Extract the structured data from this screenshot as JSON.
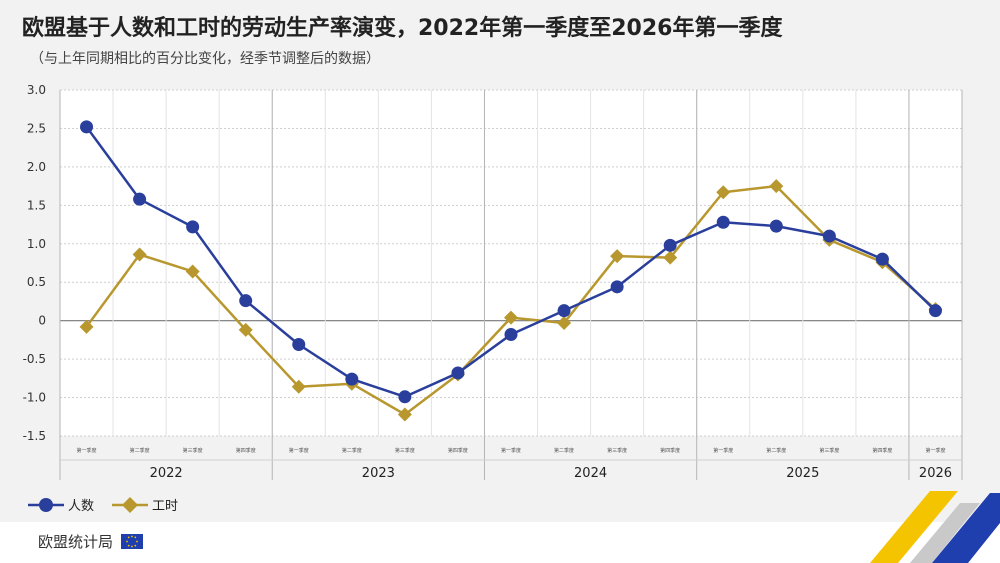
{
  "header": {
    "title": "欧盟基于人数和工时的劳动生产率演变，2022年第一季度至2026年第一季度",
    "subtitle": "（与上年同期相比的百分比变化，经季节调整后的数据）"
  },
  "footer": {
    "source": "欧盟统计局"
  },
  "colors": {
    "persons": "#2a3f9c",
    "hours": "#b8982e",
    "accent_yellow": "#f5c400",
    "accent_blue": "#1f3fae"
  },
  "chart_data": {
    "type": "line",
    "title": "欧盟基于人数和工时的劳动生产率演变，2022年第一季度至2026年第一季度",
    "subtitle": "（与上年同期相比的百分比变化，经季节调整后的数据）",
    "ylim": [
      -1.5,
      3.0
    ],
    "yticks": [
      "3.0",
      "2.5",
      "2.0",
      "1.5",
      "1.0",
      "0.5",
      "0",
      "-0.5",
      "-1.0",
      "-1.5"
    ],
    "quarter_labels": [
      "第一季度",
      "第二季度",
      "第三季度",
      "第四季度",
      "第一季度",
      "第二季度",
      "第三季度",
      "第四季度",
      "第一季度",
      "第二季度",
      "第三季度",
      "第四季度",
      "第一季度",
      "第二季度",
      "第三季度",
      "第四季度",
      "第一季度"
    ],
    "years": [
      {
        "label": "2022",
        "quarters": 4
      },
      {
        "label": "2023",
        "quarters": 4
      },
      {
        "label": "2024",
        "quarters": 4
      },
      {
        "label": "2025",
        "quarters": 4
      },
      {
        "label": "2026",
        "quarters": 1
      }
    ],
    "grid": true,
    "legend_position": "bottom-left",
    "series": [
      {
        "name": "人数",
        "marker": "circle",
        "values": [
          2.52,
          1.58,
          1.22,
          0.26,
          -0.31,
          -0.76,
          -0.99,
          -0.68,
          -0.18,
          0.13,
          0.44,
          0.98,
          1.28,
          1.23,
          1.1,
          0.8,
          0.13
        ]
      },
      {
        "name": "工时",
        "marker": "diamond",
        "values": [
          -0.08,
          0.86,
          0.64,
          -0.12,
          -0.86,
          -0.82,
          -1.22,
          -0.7,
          0.04,
          -0.03,
          0.84,
          0.82,
          1.67,
          1.75,
          1.05,
          0.76,
          0.15
        ]
      }
    ]
  }
}
